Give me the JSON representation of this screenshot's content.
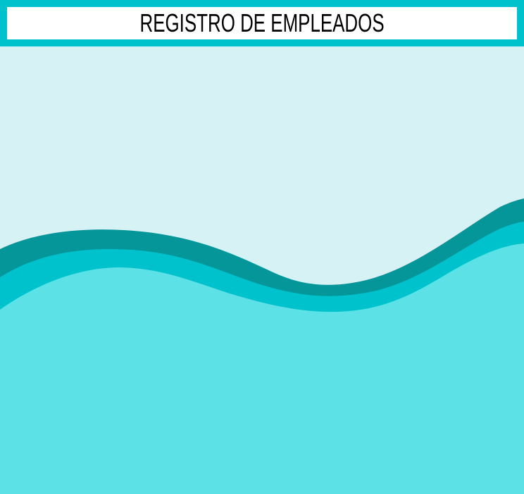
{
  "header": {
    "title": "REGISTRO DE EMPLEADOS"
  },
  "colors": {
    "header_border": "#00c2cc",
    "title_background": "#ffffff",
    "sky_background": "#d7f2f4",
    "wave_dark": "#05969a",
    "wave_mid": "#00c2cc",
    "wave_light": "#5ce2e6"
  }
}
